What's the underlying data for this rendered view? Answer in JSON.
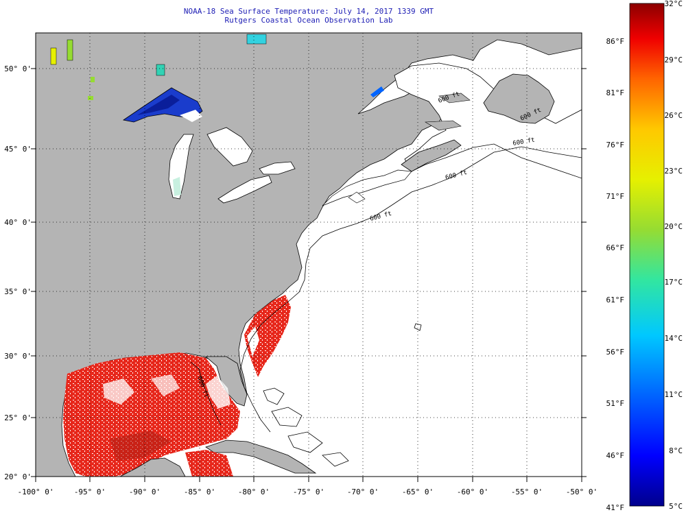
{
  "title": "NOAA-18 Sea Surface Temperature:  July 14, 2017 1339 GMT",
  "subtitle": "Rutgers Coastal Ocean Observation Lab",
  "map": {
    "lon_range": [
      -100,
      -50
    ],
    "lat_range": [
      20,
      52.5
    ],
    "lon_ticks": [
      "-100° 0'",
      "-95° 0'",
      "-90° 0'",
      "-85° 0'",
      "-80° 0'",
      "-75° 0'",
      "-70° 0'",
      "-65° 0'",
      "-60° 0'",
      "-55° 0'",
      "-50° 0'"
    ],
    "lat_ticks": [
      "20° 0'",
      "25° 0'",
      "30° 0'",
      "35° 0'",
      "40° 0'",
      "45° 0'",
      "50° 0'"
    ],
    "contour_labels": [
      "600 ft",
      "600 ft",
      "600 ft",
      "600 ft",
      "600 ft",
      "600 ft"
    ],
    "land_color": "#b4b4b4",
    "water_color": "#ffffff"
  },
  "colorbar": {
    "celsius_labels": [
      "32°C",
      "29°C",
      "26°C",
      "23°C",
      "20°C",
      "17°C",
      "14°C",
      "11°C",
      "8°C",
      "5°C"
    ],
    "fahrenheit_labels": [
      "86°F",
      "81°F",
      "76°F",
      "71°F",
      "66°F",
      "61°F",
      "56°F",
      "51°F",
      "46°F",
      "41°F"
    ],
    "colors": [
      "#00008c",
      "#0000ff",
      "#0064ff",
      "#00c8ff",
      "#32e6a0",
      "#96dc32",
      "#e6f000",
      "#ffc800",
      "#ff6400",
      "#f00000",
      "#8c0000"
    ]
  }
}
